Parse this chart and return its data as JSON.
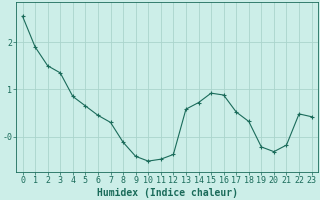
{
  "x": [
    0,
    1,
    2,
    3,
    4,
    5,
    6,
    7,
    8,
    9,
    10,
    11,
    12,
    13,
    14,
    15,
    16,
    17,
    18,
    19,
    20,
    21,
    22,
    23
  ],
  "y": [
    2.55,
    1.9,
    1.5,
    1.35,
    0.85,
    0.65,
    0.45,
    0.3,
    -0.12,
    -0.42,
    -0.52,
    -0.48,
    -0.38,
    0.58,
    0.72,
    0.92,
    0.88,
    0.52,
    0.32,
    -0.22,
    -0.32,
    -0.18,
    0.48,
    0.42
  ],
  "line_color": "#1a6b5a",
  "marker": "+",
  "bg_color": "#cceee8",
  "grid_color": "#aad4cc",
  "xlabel": "Humidex (Indice chaleur)",
  "xlim": [
    -0.5,
    23.5
  ],
  "ylim": [
    -0.75,
    2.85
  ],
  "axis_color": "#1a6b5a",
  "tick_color": "#1a6b5a",
  "xlabel_fontsize": 7,
  "tick_fontsize": 6
}
